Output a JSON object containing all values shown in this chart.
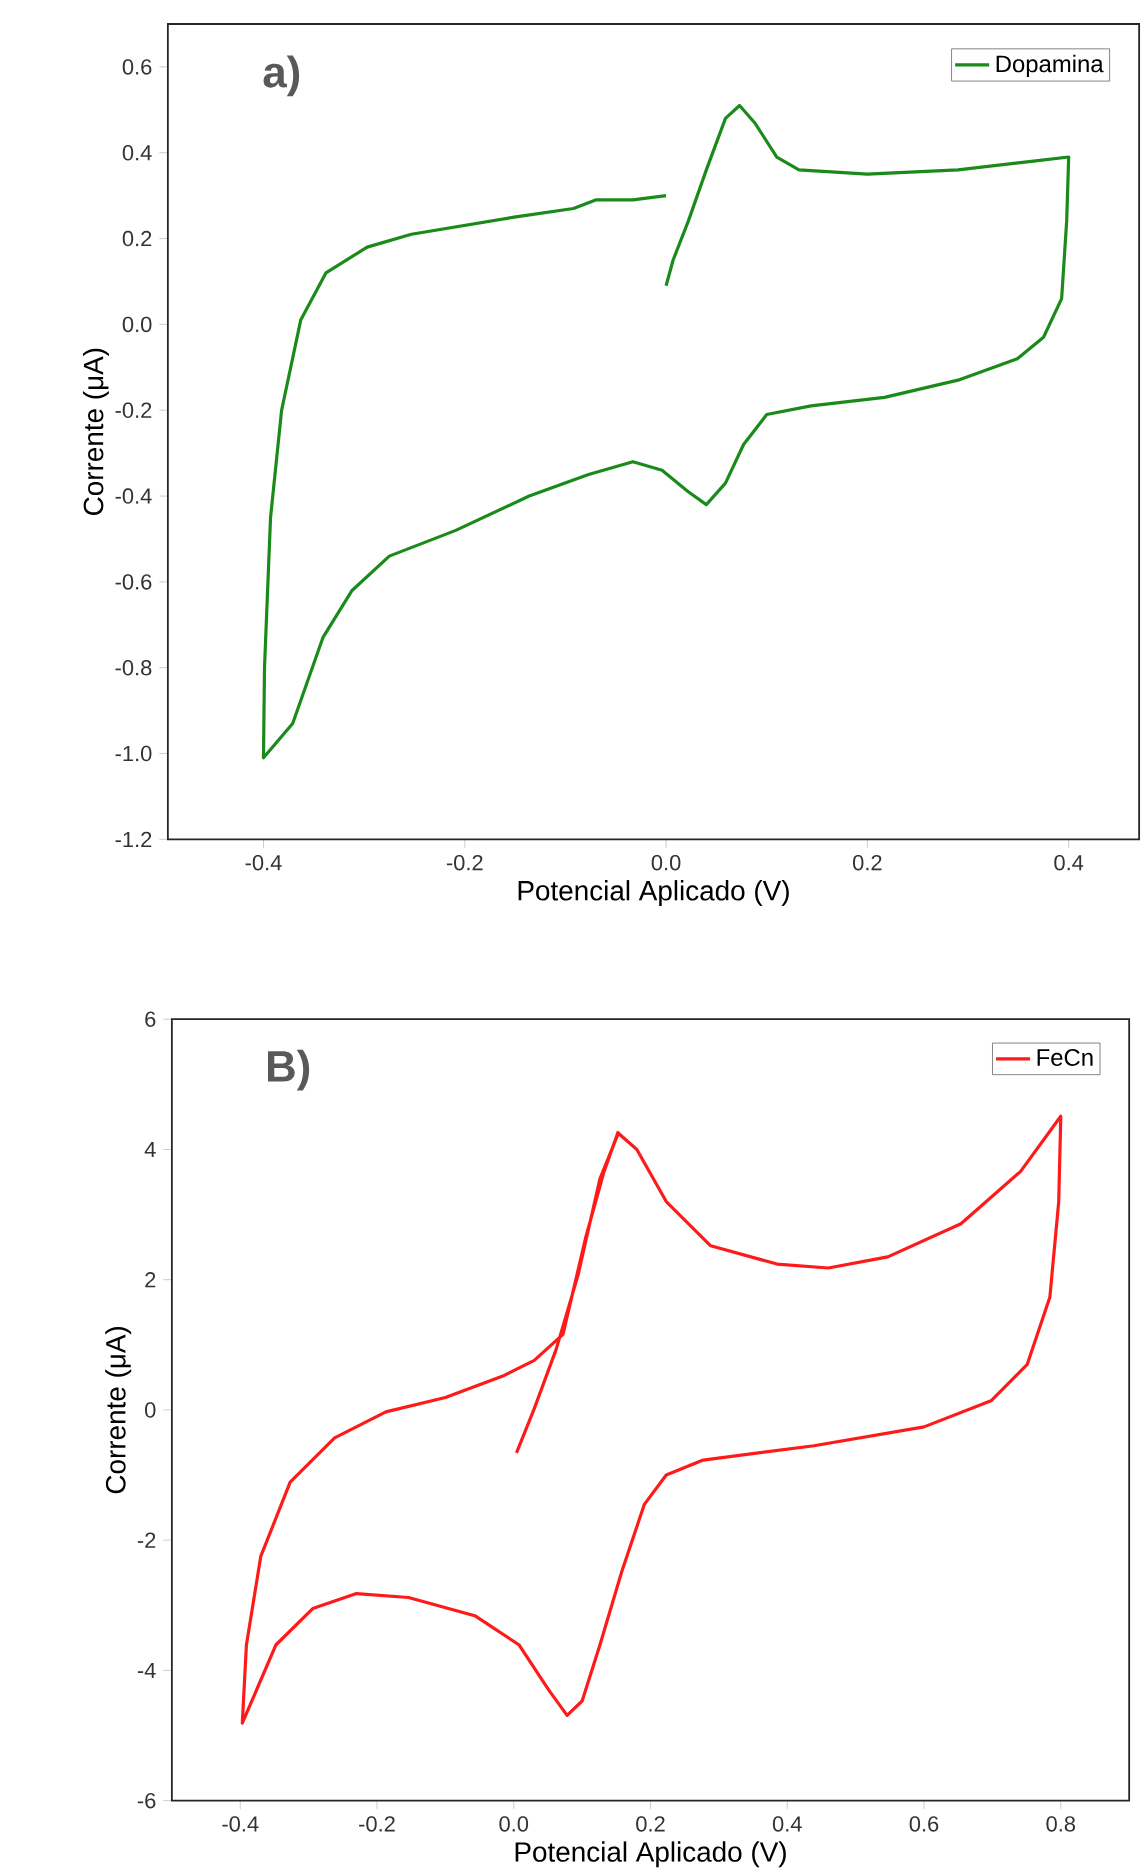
{
  "chart_data": [
    {
      "type": "line",
      "xlabel": "Potencial Aplicado (V)",
      "ylabel": "Corrente (μA)",
      "annotations": [
        "a)"
      ],
      "legend": "top right",
      "xlim": [
        -0.495,
        0.47
      ],
      "ylim": [
        -1.2,
        0.7
      ],
      "xticks": [
        {
          "value": -0.4,
          "label": "-0.4"
        },
        {
          "value": -0.2,
          "label": "-0.2"
        },
        {
          "value": 0,
          "label": "0.0"
        },
        {
          "value": 0.2,
          "label": "0.2"
        },
        {
          "value": 0.4,
          "label": "0.4"
        }
      ],
      "yticks": [
        {
          "value": -1.2,
          "label": "-1.2"
        },
        {
          "value": -1.0,
          "label": "-1.0"
        },
        {
          "value": -0.8,
          "label": "-0.8"
        },
        {
          "value": -0.6,
          "label": "-0.6"
        },
        {
          "value": -0.4,
          "label": "-0.4"
        },
        {
          "value": -0.2,
          "label": "-0.2"
        },
        {
          "value": 0,
          "label": "0.0"
        },
        {
          "value": 0.2,
          "label": "0.2"
        },
        {
          "value": 0.4,
          "label": "0.4"
        },
        {
          "value": 0.6,
          "label": "0.6"
        }
      ],
      "series": [
        {
          "name": "Dopamina",
          "color": "#1a8a1a",
          "x": [
            0,
            0.007,
            0.022,
            0.04,
            0.059,
            0.073,
            0.088,
            0.11,
            0.132,
            0.2,
            0.29,
            0.363,
            0.4,
            0.398,
            0.393,
            0.375,
            0.349,
            0.29,
            0.217,
            0.144,
            0.1,
            0.077,
            0.059,
            0.04,
            0.022,
            -0.004,
            -0.033,
            -0.077,
            -0.136,
            -0.209,
            -0.275,
            -0.312,
            -0.341,
            -0.371,
            -0.4,
            -0.399,
            -0.393,
            -0.382,
            -0.363,
            -0.338,
            -0.297,
            -0.253,
            -0.151,
            -0.092,
            -0.07,
            -0.033,
            0
          ],
          "values": [
            0.09,
            0.15,
            0.24,
            0.36,
            0.48,
            0.51,
            0.47,
            0.39,
            0.36,
            0.35,
            0.36,
            0.38,
            0.39,
            0.24,
            0.06,
            -0.03,
            -0.08,
            -0.13,
            -0.17,
            -0.19,
            -0.21,
            -0.28,
            -0.37,
            -0.42,
            -0.39,
            -0.34,
            -0.32,
            -0.35,
            -0.4,
            -0.48,
            -0.54,
            -0.62,
            -0.73,
            -0.93,
            -1.01,
            -0.8,
            -0.45,
            -0.2,
            0.01,
            0.12,
            0.18,
            0.21,
            0.25,
            0.27,
            0.29,
            0.29,
            0.3
          ]
        }
      ]
    },
    {
      "type": "line",
      "xlabel": "Potencial Aplicado (V)",
      "ylabel": "Corrente (μA)",
      "annotations": [
        "B)"
      ],
      "legend": "top right",
      "xlim": [
        -0.5,
        0.9
      ],
      "ylim": [
        -6,
        6
      ],
      "xticks": [
        {
          "value": -0.4,
          "label": "-0.4"
        },
        {
          "value": -0.2,
          "label": "-0.2"
        },
        {
          "value": 0,
          "label": "0.0"
        },
        {
          "value": 0.2,
          "label": "0.2"
        },
        {
          "value": 0.4,
          "label": "0.4"
        },
        {
          "value": 0.6,
          "label": "0.6"
        },
        {
          "value": 0.8,
          "label": "0.8"
        }
      ],
      "yticks": [
        -6,
        -4,
        -2,
        0,
        2,
        4,
        6
      ],
      "series": [
        {
          "name": "FeCn",
          "color": "#ff1a1a",
          "x": [
            0.004,
            0.03,
            0.062,
            0.094,
            0.126,
            0.153,
            0.18,
            0.223,
            0.288,
            0.385,
            0.46,
            0.547,
            0.654,
            0.741,
            0.8,
            0.797,
            0.784,
            0.751,
            0.698,
            0.6,
            0.439,
            0.277,
            0.223,
            0.191,
            0.158,
            0.126,
            0.1,
            0.078,
            0.051,
            0.008,
            -0.057,
            -0.154,
            -0.23,
            -0.294,
            -0.348,
            -0.397,
            -0.391,
            -0.37,
            -0.327,
            -0.262,
            -0.187,
            -0.1,
            -0.014,
            0.03,
            0.072,
            0.105,
            0.132,
            0.153
          ],
          "values": [
            -0.66,
            0.02,
            0.93,
            2.07,
            3.55,
            4.25,
            4.0,
            3.2,
            2.52,
            2.24,
            2.18,
            2.35,
            2.86,
            3.66,
            4.51,
            3.2,
            1.73,
            0.7,
            0.14,
            -0.26,
            -0.55,
            -0.77,
            -1.0,
            -1.45,
            -2.48,
            -3.61,
            -4.47,
            -4.69,
            -4.3,
            -3.61,
            -3.16,
            -2.88,
            -2.82,
            -3.05,
            -3.61,
            -4.81,
            -3.61,
            -2.25,
            -1.11,
            -0.43,
            -0.03,
            0.19,
            0.53,
            0.76,
            1.16,
            2.64,
            3.66,
            4.28
          ]
        }
      ]
    }
  ]
}
